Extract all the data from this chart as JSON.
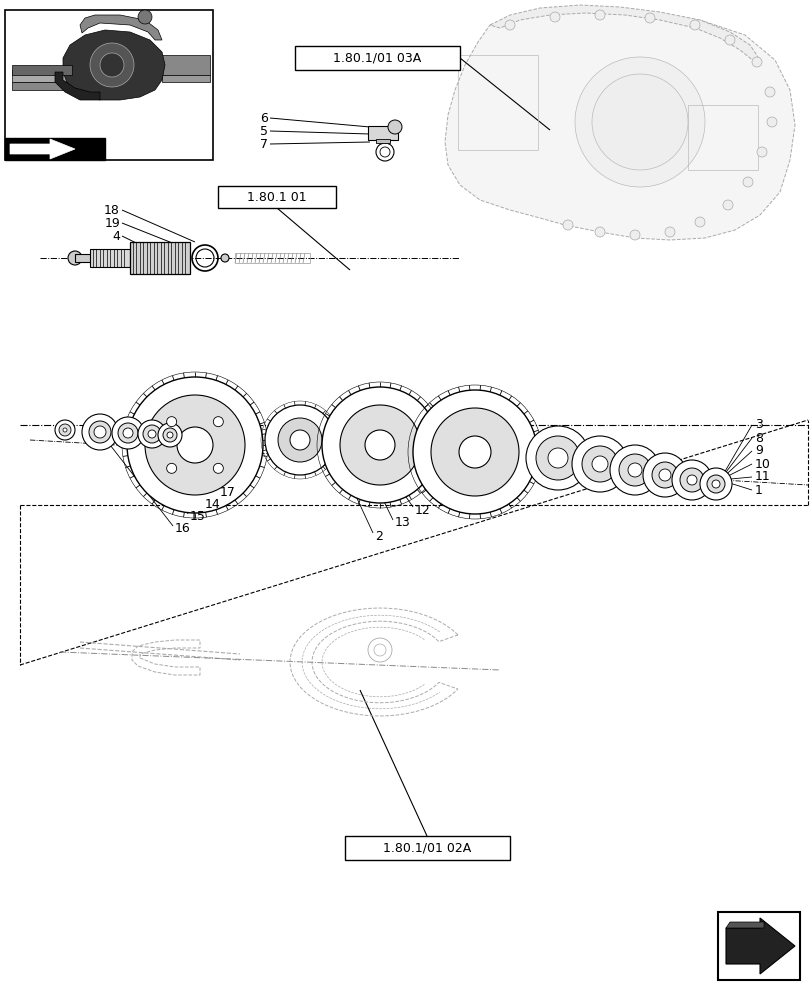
{
  "bg_color": "#ffffff",
  "line_color": "#000000",
  "gray1": "#c0c0c0",
  "gray2": "#909090",
  "gray3": "#606060",
  "labels": {
    "ref1": "1.80.1/01 03A",
    "ref2": "1.80.1 01",
    "ref3": "1.80.1/01 02A"
  }
}
